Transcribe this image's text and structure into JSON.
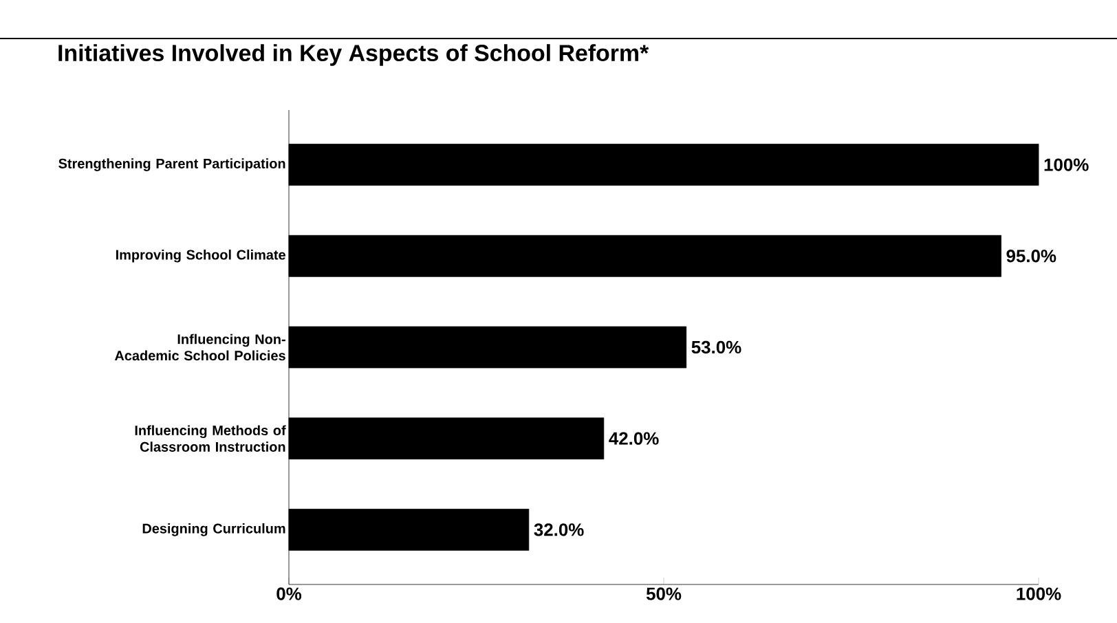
{
  "chart_data": {
    "type": "bar",
    "orientation": "horizontal",
    "title": "Initiatives Involved in Key Aspects of School Reform*",
    "categories": [
      "Strengthening Parent Participation",
      "Improving School Climate",
      "Influencing Non-Academic School Policies",
      "Influencing Methods of Classroom Instruction",
      "Designing Curriculum"
    ],
    "values": [
      100,
      95,
      53,
      42,
      32
    ],
    "value_labels": [
      "100%",
      "95.0%",
      "53.0%",
      "42.0%",
      "32.0%"
    ],
    "color": "#000000",
    "xlim": [
      0,
      100
    ],
    "xticks": [
      {
        "value": 0,
        "label": "0%"
      },
      {
        "value": 50,
        "label": "50%"
      },
      {
        "value": 100,
        "label": "100%"
      }
    ]
  }
}
